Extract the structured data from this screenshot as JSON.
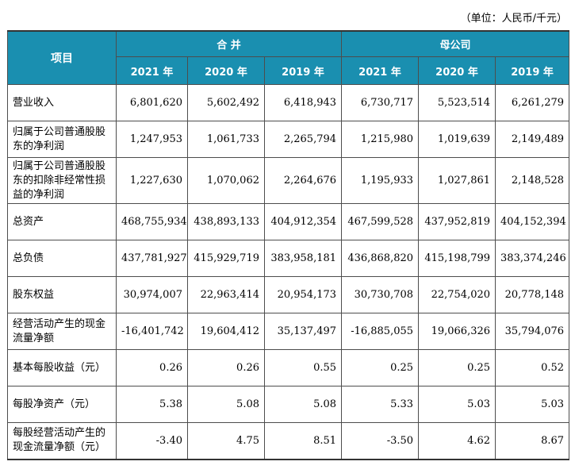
{
  "unit_note": "（单位：人民币/千元）",
  "header": {
    "item": "项目",
    "group_consolidated": "合  并",
    "group_parent": "母公司",
    "years": [
      "2021 年",
      "2020 年",
      "2019 年",
      "2021 年",
      "2020 年",
      "2019 年"
    ]
  },
  "rows": [
    {
      "label": "营业收入",
      "values": [
        "6,801,620",
        "5,602,492",
        "6,418,943",
        "6,730,717",
        "5,523,514",
        "6,261,279"
      ]
    },
    {
      "label": "归属于公司普通股股东的净利润",
      "values": [
        "1,247,953",
        "1,061,733",
        "2,265,794",
        "1,215,980",
        "1,019,639",
        "2,149,489"
      ]
    },
    {
      "label": "归属于公司普通股股东的扣除非经常性损益的净利润",
      "values": [
        "1,227,630",
        "1,070,062",
        "2,264,676",
        "1,195,933",
        "1,027,861",
        "2,148,528"
      ]
    },
    {
      "label": "总资产",
      "values": [
        "468,755,934",
        "438,893,133",
        "404,912,354",
        "467,599,528",
        "437,952,819",
        "404,152,394"
      ]
    },
    {
      "label": "总负债",
      "values": [
        "437,781,927",
        "415,929,719",
        "383,958,181",
        "436,868,820",
        "415,198,799",
        "383,374,246"
      ]
    },
    {
      "label": "股东权益",
      "values": [
        "30,974,007",
        "22,963,414",
        "20,954,173",
        "30,730,708",
        "22,754,020",
        "20,778,148"
      ]
    },
    {
      "label": "经营活动产生的现金流量净额",
      "values": [
        "-16,401,742",
        "19,604,412",
        "35,137,497",
        "-16,885,055",
        "19,066,326",
        "35,794,076"
      ]
    },
    {
      "label": "基本每股收益（元）",
      "values": [
        "0.26",
        "0.26",
        "0.55",
        "0.25",
        "0.25",
        "0.52"
      ]
    },
    {
      "label": "每股净资产（元）",
      "values": [
        "5.38",
        "5.08",
        "5.08",
        "5.33",
        "5.03",
        "5.03"
      ]
    },
    {
      "label": "每股经营活动产生的现金流量净额（元）",
      "values": [
        "-3.40",
        "4.75",
        "8.51",
        "-3.50",
        "4.62",
        "8.67"
      ]
    }
  ]
}
